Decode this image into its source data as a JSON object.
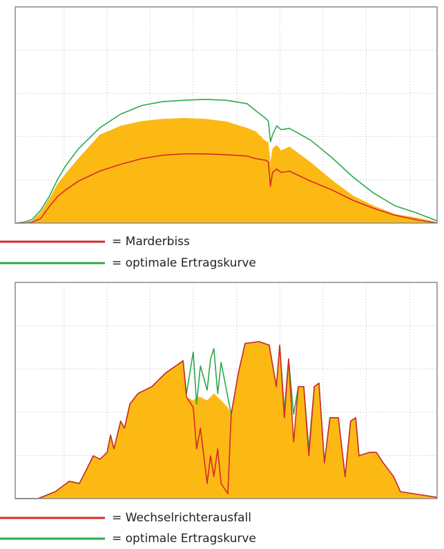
{
  "chart_data": [
    {
      "type": "area",
      "x": [
        0,
        0.2,
        0.4,
        0.6,
        0.8,
        1.0,
        1.2,
        1.5,
        2,
        2.5,
        3,
        3.5,
        4,
        4.5,
        5,
        5.5,
        5.7,
        5.95,
        6.0,
        6.05,
        6.1,
        6.2,
        6.3,
        6.5,
        7,
        7.5,
        8,
        8.5,
        9,
        9.5,
        10
      ],
      "xlim": [
        0,
        10
      ],
      "ylim": [
        0,
        5
      ],
      "xticks": [
        1.16,
        2.18,
        3.2,
        4.22,
        5.25,
        6.27,
        7.3,
        8.32,
        9.35
      ],
      "yticks": [
        1,
        2,
        3,
        4
      ],
      "grid": true,
      "series": [
        {
          "color": "#fdb913",
          "fill": true,
          "values": [
            0,
            0,
            0.05,
            0.25,
            0.55,
            0.9,
            1.15,
            1.5,
            2.04,
            2.25,
            2.36,
            2.41,
            2.43,
            2.41,
            2.35,
            2.2,
            2.12,
            1.88,
            1.88,
            1.41,
            1.73,
            1.81,
            1.68,
            1.77,
            1.41,
            1.0,
            0.64,
            0.4,
            0.21,
            0.13,
            0.02
          ]
        },
        {
          "name": "= optimale Ertragskurve",
          "color": "#2aa84a",
          "values": [
            0,
            0.02,
            0.08,
            0.29,
            0.6,
            1.0,
            1.33,
            1.72,
            2.2,
            2.52,
            2.72,
            2.81,
            2.84,
            2.86,
            2.84,
            2.76,
            2.6,
            2.41,
            2.36,
            1.88,
            2.04,
            2.25,
            2.16,
            2.19,
            1.92,
            1.52,
            1.07,
            0.69,
            0.4,
            0.24,
            0.05
          ]
        },
        {
          "name": "= Marderbiss",
          "color": "#d42a2a",
          "values": [
            0,
            0,
            0.02,
            0.1,
            0.37,
            0.61,
            0.77,
            0.97,
            1.2,
            1.36,
            1.49,
            1.57,
            1.6,
            1.6,
            1.58,
            1.55,
            1.49,
            1.45,
            1.41,
            0.85,
            1.17,
            1.25,
            1.17,
            1.2,
            0.97,
            0.77,
            0.53,
            0.34,
            0.18,
            0.08,
            0
          ]
        }
      ],
      "legend_order": [
        2,
        1
      ]
    },
    {
      "type": "area",
      "x": [
        0,
        0.54,
        0.95,
        1.28,
        1.52,
        1.69,
        1.85,
        2.01,
        2.18,
        2.26,
        2.34,
        2.5,
        2.59,
        2.72,
        2.91,
        3.24,
        3.57,
        3.81,
        3.98,
        4.06,
        4.22,
        4.3,
        4.39,
        4.55,
        4.63,
        4.71,
        4.8,
        4.88,
        5.04,
        5.12,
        5.29,
        5.45,
        5.78,
        6.02,
        6.19,
        6.27,
        6.38,
        6.48,
        6.6,
        6.71,
        6.84,
        6.96,
        7.09,
        7.2,
        7.33,
        7.46,
        7.66,
        7.82,
        7.95,
        8.07,
        8.15,
        8.4,
        8.56,
        8.72,
        8.97,
        9.13,
        9.46,
        10
      ],
      "xlim": [
        0,
        10
      ],
      "ylim": [
        0,
        5
      ],
      "xticks": [
        1.16,
        2.18,
        3.2,
        4.22,
        5.25,
        6.27,
        7.3,
        8.32,
        9.35
      ],
      "yticks": [
        1,
        2,
        3,
        4
      ],
      "grid": true,
      "series": [
        {
          "color": "#fdb913",
          "fill": true,
          "values": [
            0,
            0,
            0.16,
            0.4,
            0.35,
            0.67,
            0.99,
            0.91,
            1.07,
            1.47,
            1.15,
            1.79,
            1.63,
            2.19,
            2.43,
            2.59,
            2.91,
            3.07,
            3.19,
            2.35,
            2.27,
            2.35,
            2.35,
            2.27,
            2.35,
            2.43,
            2.35,
            2.27,
            2.11,
            1.95,
            2.91,
            3.59,
            3.63,
            3.55,
            2.59,
            3.55,
            1.95,
            3.23,
            1.31,
            2.59,
            2.59,
            1.1,
            2.59,
            2.67,
            0.83,
            1.87,
            1.87,
            0.51,
            1.79,
            1.87,
            0.99,
            1.07,
            1.07,
            0.83,
            0.51,
            0.16,
            0.11,
            0.03
          ]
        },
        {
          "name": "= optimale Ertragskurve",
          "color": "#2aa84a",
          "values": [
            0,
            0,
            0.16,
            0.4,
            0.35,
            0.67,
            0.99,
            0.91,
            1.07,
            1.47,
            1.15,
            1.79,
            1.63,
            2.19,
            2.43,
            2.59,
            2.91,
            3.07,
            3.19,
            2.43,
            3.39,
            2.19,
            3.07,
            2.51,
            3.23,
            3.47,
            2.43,
            3.15,
            2.35,
            1.95,
            2.91,
            3.59,
            3.63,
            3.55,
            2.59,
            3.55,
            2.03,
            3.23,
            1.95,
            2.59,
            2.59,
            1.15,
            2.59,
            2.67,
            0.83,
            1.87,
            1.87,
            0.51,
            1.79,
            1.87,
            0.99,
            1.07,
            1.07,
            0.83,
            0.51,
            0.16,
            0.11,
            0.03
          ]
        },
        {
          "name": "= Wechselrichterausfall",
          "color": "#d42a2a",
          "values": [
            0,
            0,
            0.16,
            0.4,
            0.35,
            0.67,
            0.99,
            0.91,
            1.07,
            1.47,
            1.15,
            1.79,
            1.63,
            2.19,
            2.43,
            2.59,
            2.91,
            3.07,
            3.19,
            2.35,
            2.11,
            1.15,
            1.63,
            0.35,
            0.99,
            0.51,
            1.15,
            0.35,
            0.11,
            1.95,
            2.91,
            3.59,
            3.63,
            3.55,
            2.59,
            3.55,
            1.87,
            3.23,
            1.31,
            2.59,
            2.59,
            0.99,
            2.59,
            2.67,
            0.83,
            1.87,
            1.87,
            0.51,
            1.79,
            1.87,
            0.99,
            1.07,
            1.07,
            0.83,
            0.51,
            0.16,
            0.11,
            0.03
          ]
        }
      ],
      "legend_order": [
        2,
        1
      ]
    }
  ]
}
